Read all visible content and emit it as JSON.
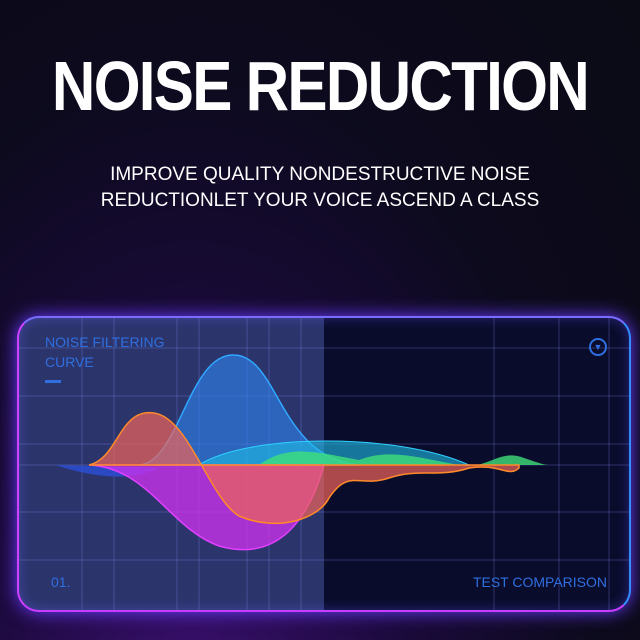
{
  "headline": "NOISE REDUCTION",
  "subtitle": [
    "IMPROVE QUALITY NONDESTRUCTIVE NOISE",
    "REDUCTIONLET YOUR VOICE ASCEND A CLASS"
  ],
  "panel": {
    "label_lines": [
      "NOISE FILTERING",
      "CURVE"
    ],
    "index": "01.",
    "footer": "TEST COMPARISON",
    "icon": "down-arrow-circle-icon"
  },
  "colors": {
    "blue": "#2fa8ff",
    "orange": "#ff8a2a",
    "magenta": "#e040ff",
    "green": "#3ee07a",
    "pink": "#e8607a"
  }
}
